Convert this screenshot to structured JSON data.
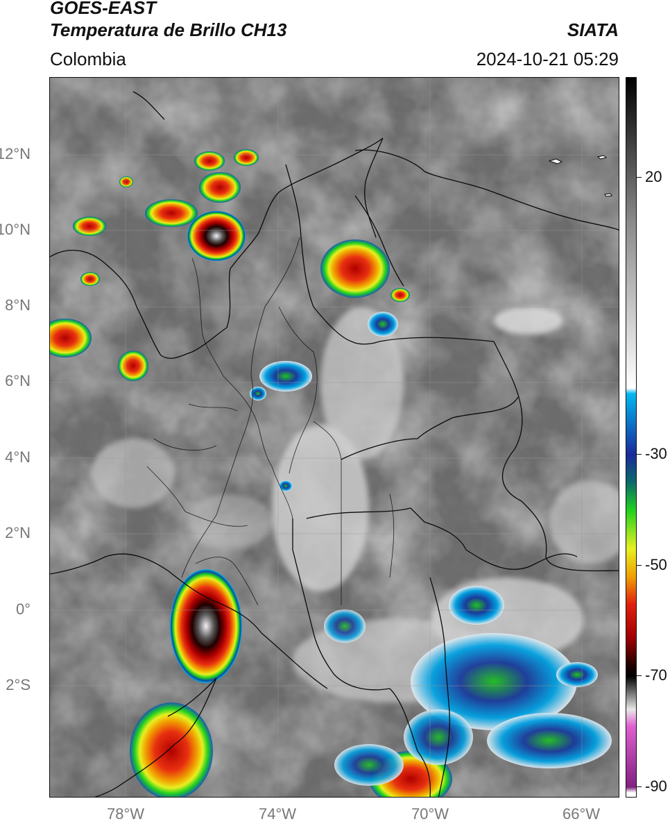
{
  "header": {
    "satellite": "GOES-EAST",
    "product": "Temperatura de Brillo CH13",
    "agency": "SIATA",
    "region": "Colombia",
    "timestamp": "2024-10-21 05:29"
  },
  "axes": {
    "lat_labels": [
      "12°N",
      "10°N",
      "8°N",
      "6°N",
      "4°N",
      "2°N",
      "0°",
      "2°S"
    ],
    "lon_labels": [
      "78°W",
      "74°W",
      "70°W",
      "66°W"
    ],
    "lat_range": [
      -5,
      14
    ],
    "lon_range": [
      -79.6,
      -64.5
    ]
  },
  "colorbar": {
    "label_values": [
      20,
      -30,
      -50,
      -70,
      -90
    ],
    "labels": [
      "20",
      "-30",
      "-50",
      "-70",
      "-90"
    ],
    "range": [
      -92,
      38
    ],
    "stops": [
      {
        "t": 38,
        "color": "#000000"
      },
      {
        "t": 12,
        "color": "#8a8a8a"
      },
      {
        "t": -18,
        "color": "#ffffff"
      },
      {
        "t": -19,
        "color": "#00b8f0"
      },
      {
        "t": -30,
        "color": "#1a2a9a"
      },
      {
        "t": -35,
        "color": "#0a6a6a"
      },
      {
        "t": -40,
        "color": "#20d020"
      },
      {
        "t": -47,
        "color": "#e8f020"
      },
      {
        "t": -52,
        "color": "#f0a000"
      },
      {
        "t": -57,
        "color": "#e02010"
      },
      {
        "t": -63,
        "color": "#a00000"
      },
      {
        "t": -68,
        "color": "#200000"
      },
      {
        "t": -70,
        "color": "#000000"
      },
      {
        "t": -76,
        "color": "#e8e8e8"
      },
      {
        "t": -79,
        "color": "#e060d0"
      },
      {
        "t": -90,
        "color": "#802080"
      },
      {
        "t": -91,
        "color": "#ffffff"
      }
    ]
  }
}
